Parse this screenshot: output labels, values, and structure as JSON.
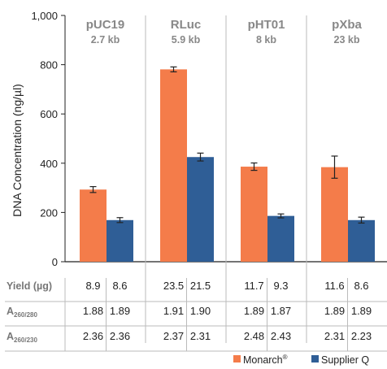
{
  "chart_data": {
    "type": "bar",
    "ylabel": "DNA Concentration (ng/µl)",
    "ylim": [
      0,
      1000
    ],
    "yticks": [
      "0",
      "200",
      "400",
      "600",
      "800",
      "1,000"
    ],
    "grid": false,
    "groups": [
      {
        "name": "pUC19",
        "size": "2.7 kb"
      },
      {
        "name": "RLuc",
        "size": "5.9 kb"
      },
      {
        "name": "pHT01",
        "size": "8 kb"
      },
      {
        "name": "pXba",
        "size": "23 kb"
      }
    ],
    "series": [
      {
        "name": "Monarch",
        "mark": "®",
        "color": "#f47c4a",
        "values": [
          293,
          781,
          386,
          384
        ],
        "errors": [
          12,
          10,
          15,
          45
        ]
      },
      {
        "name": "Supplier Q",
        "color": "#2f5e96",
        "values": [
          169,
          425,
          186,
          169
        ],
        "errors": [
          10,
          16,
          8,
          12
        ]
      }
    ],
    "table": {
      "rows": [
        {
          "label": "Yield (µg)",
          "values": [
            "8.9",
            "8.6",
            "23.5",
            "21.5",
            "11.7",
            "9.3",
            "11.6",
            "8.6"
          ]
        },
        {
          "label": "A",
          "sub": "260/280",
          "values": [
            "1.88",
            "1.89",
            "1.91",
            "1.90",
            "1.89",
            "1.87",
            "1.89",
            "1.89"
          ]
        },
        {
          "label": "A",
          "sub": "260/230",
          "values": [
            "2.36",
            "2.36",
            "2.37",
            "2.31",
            "2.48",
            "2.43",
            "2.31",
            "2.23"
          ]
        }
      ]
    },
    "legend_position": "bottom-right"
  }
}
